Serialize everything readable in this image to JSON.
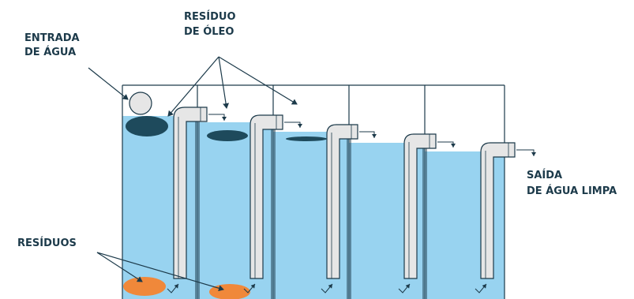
{
  "labels": {
    "water_inlet_line1": "ENTRADA",
    "water_inlet_line2": "DE ÁGUA",
    "oil_residue_line1": "RESÍDUO",
    "oil_residue_line2": "DE ÓLEO",
    "clean_outlet_line1": "SAÍDA",
    "clean_outlet_line2": "DE ÁGUA LIMPA",
    "residues": "RESÍDUOS"
  },
  "colors": {
    "water": "#98d3f0",
    "oil": "#1e4a5c",
    "residue": "#f0883a",
    "pipe": "#e6e6e6",
    "line": "#1c3a4a"
  }
}
